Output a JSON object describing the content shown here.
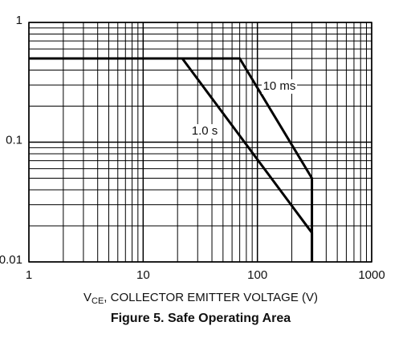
{
  "chart_data": {
    "type": "line",
    "x_label": {
      "symbol": "V",
      "subscript": "CE",
      "text": ", COLLECTOR EMITTER VOLTAGE (V)"
    },
    "caption": "Figure 5. Safe Operating Area",
    "log_x": true,
    "log_y": true,
    "grid": "minor",
    "xlim": [
      1,
      1000
    ],
    "xticks": [
      1,
      10,
      100,
      1000
    ],
    "ylim": [
      0.01,
      1
    ],
    "yticks": [
      0.01,
      0.1,
      1
    ],
    "series": [
      {
        "name": "1.0 s",
        "color": "#000000",
        "x": [
          1,
          22,
          300,
          300
        ],
        "values": [
          0.5,
          0.5,
          0.0175,
          0.01
        ]
      },
      {
        "name": "10 ms",
        "color": "#000000",
        "x": [
          1,
          70,
          300,
          300
        ],
        "values": [
          0.5,
          0.5,
          0.05,
          0.01
        ]
      }
    ]
  }
}
